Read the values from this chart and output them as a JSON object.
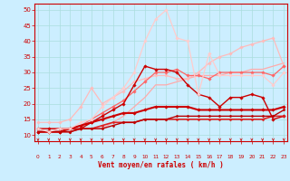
{
  "title": "",
  "xlabel": "Vent moyen/en rafales ( km/h )",
  "ylabel": "",
  "bg_color": "#cceeff",
  "grid_color": "#aadddd",
  "x_ticks": [
    0,
    1,
    2,
    3,
    4,
    5,
    6,
    7,
    8,
    9,
    10,
    11,
    12,
    13,
    14,
    15,
    16,
    17,
    18,
    19,
    20,
    21,
    22,
    23
  ],
  "ylim": [
    8,
    52
  ],
  "xlim": [
    -0.3,
    23.3
  ],
  "lines": [
    {
      "x": [
        0,
        1,
        2,
        3,
        4,
        5,
        6,
        7,
        8,
        9,
        10,
        11,
        12,
        13,
        14,
        15,
        16,
        17,
        18,
        19,
        20,
        21,
        22,
        23
      ],
      "y": [
        12,
        12,
        12,
        12,
        12,
        12,
        12,
        14,
        16,
        19,
        22,
        26,
        26,
        27,
        28,
        29,
        29,
        29,
        30,
        30,
        31,
        31,
        32,
        33
      ],
      "color": "#ffaaaa",
      "lw": 0.9,
      "marker": null,
      "ms": 0
    },
    {
      "x": [
        0,
        1,
        2,
        3,
        4,
        5,
        6,
        7,
        8,
        9,
        10,
        11,
        12,
        13,
        14,
        15,
        16,
        17,
        18,
        19,
        20,
        21,
        22,
        23
      ],
      "y": [
        14,
        14,
        14,
        15,
        19,
        25,
        20,
        22,
        24,
        27,
        28,
        29,
        29,
        28,
        28,
        30,
        33,
        35,
        36,
        38,
        39,
        40,
        41,
        32
      ],
      "color": "#ffbbbb",
      "lw": 0.9,
      "marker": "D",
      "ms": 1.8
    },
    {
      "x": [
        0,
        1,
        2,
        3,
        4,
        5,
        6,
        7,
        8,
        9,
        10,
        11,
        12,
        13,
        14,
        15,
        16,
        17,
        18,
        19,
        20,
        21,
        22,
        23
      ],
      "y": [
        11,
        11,
        11,
        12,
        13,
        15,
        17,
        19,
        21,
        24,
        27,
        30,
        30,
        31,
        29,
        29,
        28,
        30,
        30,
        30,
        30,
        30,
        29,
        32
      ],
      "color": "#ff6666",
      "lw": 0.9,
      "marker": "D",
      "ms": 1.8
    },
    {
      "x": [
        0,
        1,
        2,
        3,
        4,
        5,
        6,
        7,
        8,
        9,
        10,
        11,
        12,
        13,
        14,
        15,
        16,
        17,
        18,
        19,
        20,
        21,
        22,
        23
      ],
      "y": [
        12,
        12,
        12,
        12,
        12,
        14,
        16,
        18,
        20,
        26,
        32,
        31,
        31,
        30,
        26,
        23,
        22,
        19,
        22,
        22,
        23,
        22,
        15,
        16
      ],
      "color": "#cc0000",
      "lw": 1.0,
      "marker": "D",
      "ms": 1.8
    },
    {
      "x": [
        0,
        1,
        2,
        3,
        4,
        5,
        6,
        7,
        8,
        9,
        10,
        11,
        12,
        13,
        14,
        15,
        16,
        17,
        18,
        19,
        20,
        21,
        22,
        23
      ],
      "y": [
        11,
        11,
        11,
        12,
        13,
        14,
        15,
        16,
        17,
        17,
        18,
        19,
        19,
        19,
        19,
        18,
        18,
        18,
        18,
        18,
        18,
        18,
        18,
        19
      ],
      "color": "#cc0000",
      "lw": 1.5,
      "marker": "D",
      "ms": 1.8
    },
    {
      "x": [
        0,
        1,
        2,
        3,
        4,
        5,
        6,
        7,
        8,
        9,
        10,
        11,
        12,
        13,
        14,
        15,
        16,
        17,
        18,
        19,
        20,
        21,
        22,
        23
      ],
      "y": [
        11,
        11,
        11,
        11,
        12,
        12,
        13,
        14,
        14,
        14,
        15,
        15,
        15,
        15,
        15,
        15,
        15,
        15,
        15,
        15,
        15,
        15,
        16,
        16
      ],
      "color": "#dd2222",
      "lw": 1.2,
      "marker": "D",
      "ms": 1.5
    },
    {
      "x": [
        0,
        1,
        2,
        3,
        4,
        5,
        6,
        7,
        8,
        9,
        10,
        11,
        12,
        13,
        14,
        15,
        16,
        17,
        18,
        19,
        20,
        21,
        22,
        23
      ],
      "y": [
        11,
        11,
        11,
        11,
        12,
        12,
        12,
        13,
        14,
        14,
        15,
        15,
        15,
        16,
        16,
        16,
        16,
        16,
        16,
        16,
        16,
        16,
        16,
        18
      ],
      "color": "#bb0000",
      "lw": 1.0,
      "marker": "D",
      "ms": 1.5
    },
    {
      "x": [
        0,
        1,
        2,
        3,
        4,
        5,
        6,
        7,
        8,
        9,
        10,
        11,
        12,
        13,
        14,
        15,
        16,
        17,
        18,
        19,
        20,
        21,
        22,
        23
      ],
      "y": [
        12,
        11,
        12,
        12,
        14,
        15,
        19,
        22,
        25,
        30,
        40,
        47,
        50,
        41,
        40,
        23,
        36,
        29,
        29,
        29,
        29,
        29,
        26,
        30
      ],
      "color": "#ffcccc",
      "lw": 0.9,
      "marker": "D",
      "ms": 1.8
    }
  ]
}
